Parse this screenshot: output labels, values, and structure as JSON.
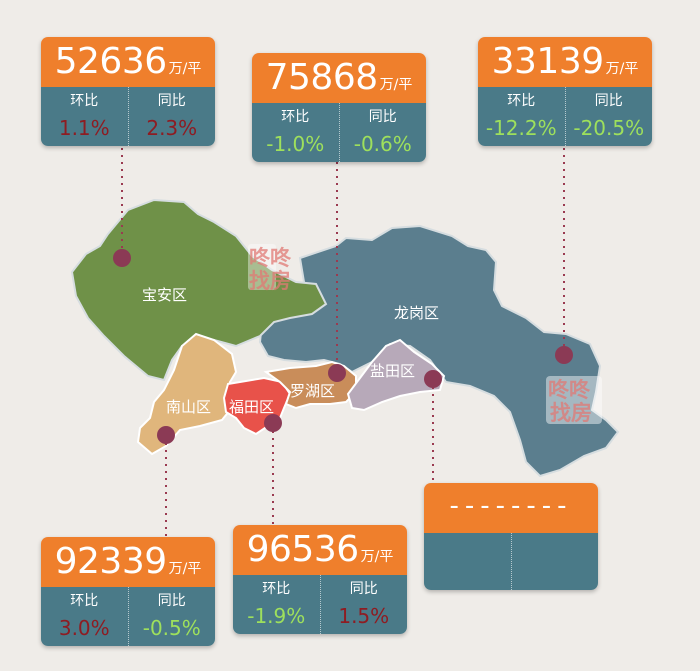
{
  "unit": "万/平",
  "mom_label": "环比",
  "yoy_label": "同比",
  "districts": {
    "baoan": {
      "name": "宝安区",
      "price": "52636",
      "mom": "1.1%",
      "yoy": "2.3%"
    },
    "luohu": {
      "name": "罗湖区",
      "price": "75868",
      "mom": "-1.0%",
      "yoy": "-0.6%"
    },
    "longgang": {
      "name": "龙岗区",
      "price": "33139",
      "mom": "-12.2%",
      "yoy": "-20.5%"
    },
    "nanshan": {
      "name": "南山区",
      "price": "92339",
      "mom": "3.0%",
      "yoy": "-0.5%"
    },
    "futian": {
      "name": "福田区",
      "price": "96536",
      "mom": "-1.9%",
      "yoy": "1.5%"
    },
    "yantian": {
      "name": "盐田区",
      "price": "--------"
    }
  },
  "colors": {
    "baoan": "#6f9148",
    "longgang": "#5b7e8e",
    "luohu": "#c98d5a",
    "nanshan": "#e0b67c",
    "futian": "#e8524a",
    "yantian": "#b7a9b9",
    "orange": "#ef7f2c",
    "teal": "#4a7a88",
    "rise": "#8e1c22",
    "fall": "#9ee05c"
  },
  "watermark": {
    "line1": "咚咚",
    "line2": "找房"
  }
}
